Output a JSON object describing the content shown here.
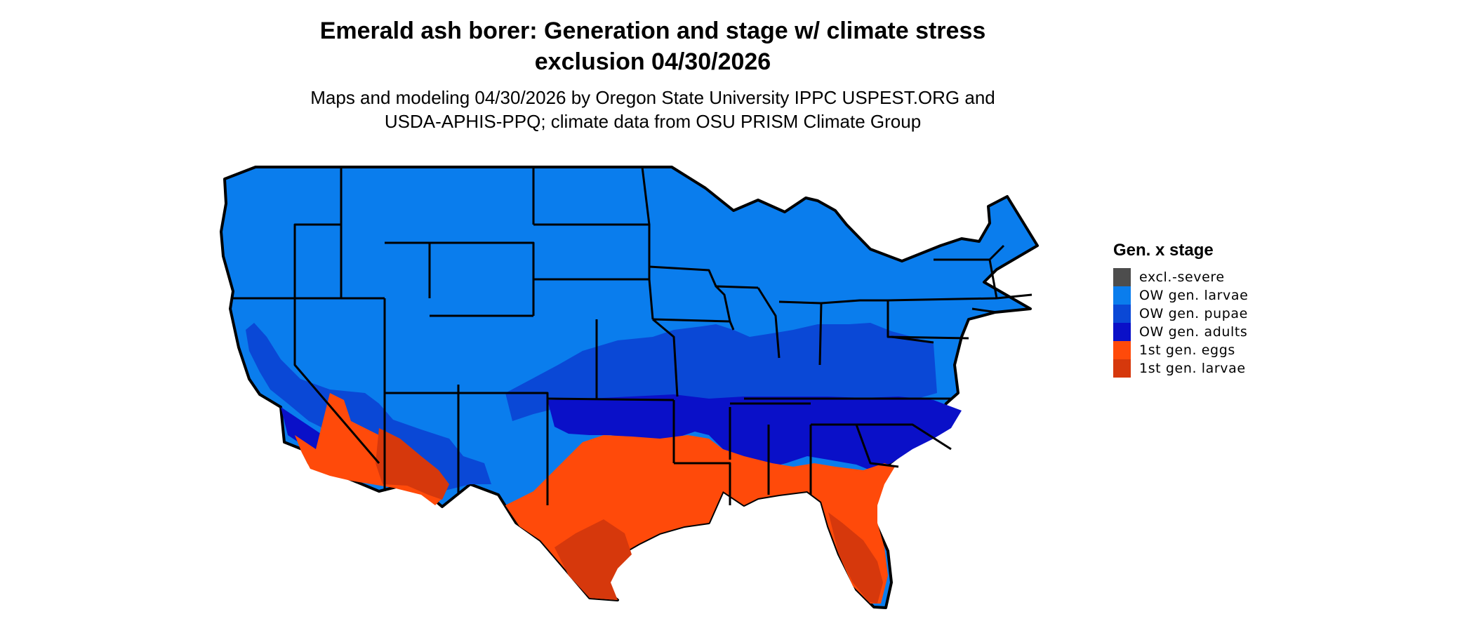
{
  "title_lines": [
    "Emerald ash borer: Generation and stage w/ climate stress",
    "exclusion 04/30/2026"
  ],
  "subtitle_lines": [
    "Maps and modeling 04/30/2026 by Oregon State University IPPC USPEST.ORG and",
    "USDA-APHIS-PPQ; climate data from OSU PRISM Climate Group"
  ],
  "legend": {
    "title": "Gen. x stage",
    "items": [
      {
        "label": "excl.-severe",
        "color": "#4d4d4d"
      },
      {
        "label": "OW gen. larvae",
        "color": "#0a7ded"
      },
      {
        "label": "OW gen. pupae",
        "color": "#0a48d6"
      },
      {
        "label": "OW gen. adults",
        "color": "#0a10c8"
      },
      {
        "label": "1st gen. eggs",
        "color": "#ff4a0a"
      },
      {
        "label": "1st gen. larvae",
        "color": "#d6380c"
      }
    ]
  },
  "colors": {
    "background": "#ffffff",
    "state_border": "#000000"
  }
}
